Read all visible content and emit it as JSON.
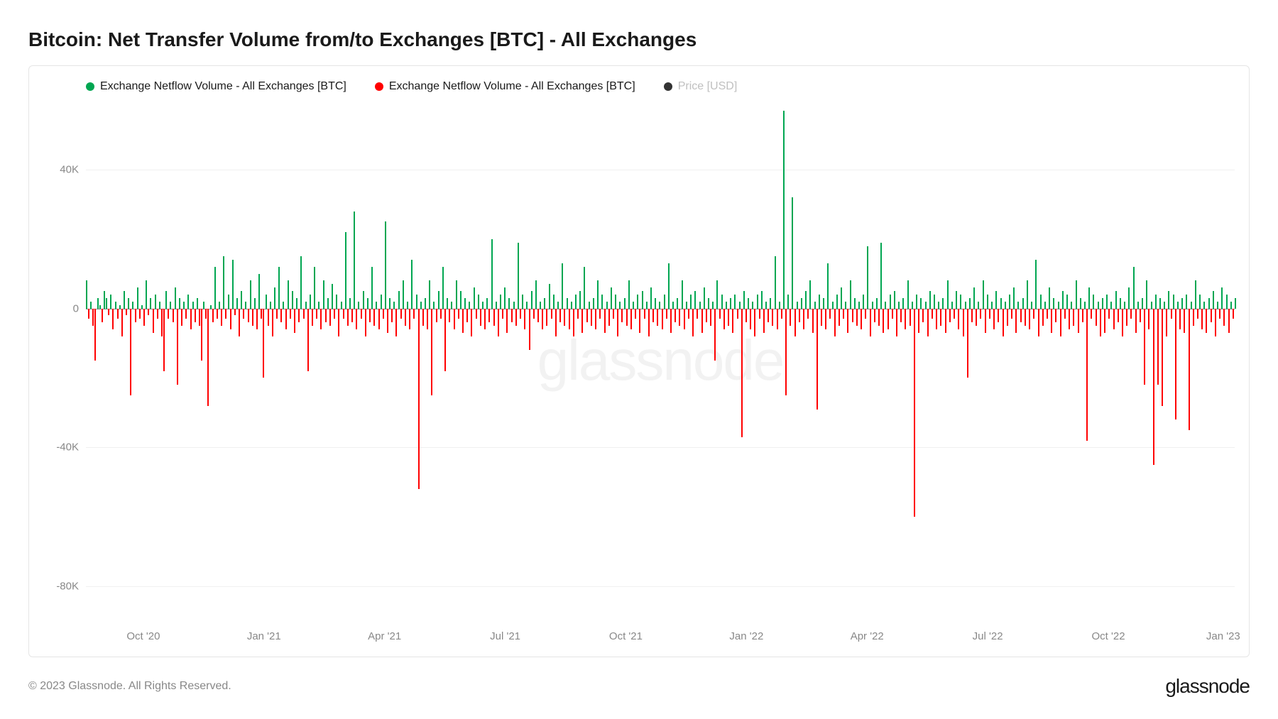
{
  "title": "Bitcoin: Net Transfer Volume from/to Exchanges [BTC] - All Exchanges",
  "legend": {
    "series1": {
      "label": "Exchange Netflow Volume - All Exchanges [BTC]",
      "color": "#00a651"
    },
    "series2": {
      "label": "Exchange Netflow Volume - All Exchanges [BTC]",
      "color": "#ff0000"
    },
    "series3": {
      "label": "Price [USD]",
      "color": "#333333",
      "inactive": true
    }
  },
  "chart": {
    "type": "bar",
    "background_color": "#ffffff",
    "grid_color": "#f0f0f0",
    "axis_color": "#888888",
    "positive_color": "#00a651",
    "negative_color": "#ff0000",
    "ylim": [
      -90000,
      60000
    ],
    "yticks": [
      {
        "v": 40000,
        "label": "40K"
      },
      {
        "v": 0,
        "label": "0"
      },
      {
        "v": -40000,
        "label": "-40K"
      },
      {
        "v": -80000,
        "label": "-80K"
      }
    ],
    "xticks": [
      {
        "pos": 0.05,
        "label": "Oct '20"
      },
      {
        "pos": 0.155,
        "label": "Jan '21"
      },
      {
        "pos": 0.26,
        "label": "Apr '21"
      },
      {
        "pos": 0.365,
        "label": "Jul '21"
      },
      {
        "pos": 0.47,
        "label": "Oct '21"
      },
      {
        "pos": 0.575,
        "label": "Jan '22"
      },
      {
        "pos": 0.68,
        "label": "Apr '22"
      },
      {
        "pos": 0.785,
        "label": "Jul '22"
      },
      {
        "pos": 0.89,
        "label": "Oct '22"
      },
      {
        "pos": 0.99,
        "label": "Jan '23"
      }
    ],
    "watermark": "glassnode",
    "data": [
      8000,
      -3000,
      2000,
      -5000,
      -15000,
      3000,
      1000,
      -4000,
      5000,
      3000,
      -2000,
      4000,
      -6000,
      2000,
      -3000,
      1000,
      -8000,
      5000,
      -2000,
      3000,
      -25000,
      2000,
      -4000,
      6000,
      -3000,
      1000,
      -5000,
      8000,
      -2000,
      3000,
      -7000,
      4000,
      -3000,
      2000,
      -8000,
      -18000,
      5000,
      -3000,
      2000,
      -4000,
      6000,
      -22000,
      3000,
      -5000,
      2000,
      -3000,
      4000,
      -6000,
      2000,
      -4000,
      3000,
      -5000,
      -15000,
      2000,
      -3000,
      -28000,
      1000,
      -4000,
      12000,
      -3000,
      2000,
      -5000,
      15000,
      -3000,
      4000,
      -6000,
      14000,
      -2000,
      3000,
      -8000,
      5000,
      -3000,
      2000,
      -4000,
      8000,
      -5000,
      3000,
      -6000,
      10000,
      -3000,
      -20000,
      4000,
      -5000,
      2000,
      -8000,
      6000,
      -3000,
      12000,
      -4000,
      2000,
      -6000,
      8000,
      -3000,
      5000,
      -7000,
      3000,
      -4000,
      15000,
      -3000,
      2000,
      -18000,
      4000,
      -5000,
      12000,
      -3000,
      2000,
      -6000,
      8000,
      -4000,
      3000,
      -5000,
      7000,
      -3000,
      4000,
      -8000,
      2000,
      -3000,
      22000,
      -5000,
      3000,
      -4000,
      28000,
      -6000,
      2000,
      -3000,
      5000,
      -8000,
      3000,
      -4000,
      12000,
      -5000,
      2000,
      -6000,
      4000,
      -3000,
      25000,
      -7000,
      3000,
      -4000,
      2000,
      -8000,
      5000,
      -3000,
      8000,
      -5000,
      2000,
      -6000,
      14000,
      -3000,
      4000,
      -52000,
      2000,
      -5000,
      3000,
      -6000,
      8000,
      -25000,
      2000,
      -4000,
      5000,
      -3000,
      12000,
      -18000,
      3000,
      -4000,
      2000,
      -6000,
      8000,
      -3000,
      5000,
      -7000,
      3000,
      -4000,
      2000,
      -8000,
      6000,
      -3000,
      4000,
      -5000,
      2000,
      -6000,
      3000,
      -4000,
      20000,
      -5000,
      2000,
      -8000,
      4000,
      -3000,
      6000,
      -7000,
      3000,
      -4000,
      2000,
      -5000,
      19000,
      -3000,
      4000,
      -6000,
      2000,
      -12000,
      5000,
      -3000,
      8000,
      -4000,
      2000,
      -6000,
      3000,
      -5000,
      7000,
      -3000,
      4000,
      -8000,
      2000,
      -4000,
      13000,
      -5000,
      3000,
      -6000,
      2000,
      -8000,
      4000,
      -3000,
      5000,
      -7000,
      12000,
      -4000,
      2000,
      -5000,
      3000,
      -6000,
      8000,
      -3000,
      4000,
      -7000,
      2000,
      -5000,
      6000,
      -3000,
      4000,
      -8000,
      2000,
      -4000,
      3000,
      -5000,
      8000,
      -6000,
      2000,
      -3000,
      4000,
      -7000,
      5000,
      -3000,
      2000,
      -8000,
      6000,
      -4000,
      3000,
      -5000,
      2000,
      -6000,
      4000,
      -3000,
      13000,
      -7000,
      2000,
      -4000,
      3000,
      -5000,
      8000,
      -6000,
      2000,
      -3000,
      4000,
      -8000,
      5000,
      -3000,
      2000,
      -7000,
      6000,
      -4000,
      3000,
      -5000,
      2000,
      -15000,
      8000,
      -3000,
      4000,
      -6000,
      2000,
      -5000,
      3000,
      -7000,
      4000,
      -3000,
      2000,
      -37000,
      5000,
      -4000,
      3000,
      -6000,
      2000,
      -8000,
      4000,
      -3000,
      5000,
      -7000,
      2000,
      -4000,
      3000,
      -5000,
      15000,
      -6000,
      2000,
      -3000,
      57000,
      -25000,
      4000,
      -5000,
      32000,
      -8000,
      2000,
      -4000,
      3000,
      -6000,
      5000,
      -3000,
      8000,
      -7000,
      2000,
      -29000,
      4000,
      -5000,
      3000,
      -6000,
      13000,
      -3000,
      2000,
      -8000,
      4000,
      -5000,
      6000,
      -3000,
      2000,
      -7000,
      8000,
      -4000,
      3000,
      -5000,
      2000,
      -6000,
      4000,
      -3000,
      18000,
      -8000,
      2000,
      -4000,
      3000,
      -5000,
      19000,
      -7000,
      2000,
      -6000,
      4000,
      -3000,
      5000,
      -8000,
      2000,
      -4000,
      3000,
      -6000,
      8000,
      -5000,
      2000,
      -60000,
      4000,
      -7000,
      3000,
      -4000,
      2000,
      -8000,
      5000,
      -3000,
      4000,
      -6000,
      2000,
      -5000,
      3000,
      -7000,
      8000,
      -4000,
      2000,
      -3000,
      5000,
      -6000,
      4000,
      -8000,
      2000,
      -20000,
      3000,
      -4000,
      6000,
      -5000,
      2000,
      -3000,
      8000,
      -7000,
      4000,
      -3000,
      2000,
      -6000,
      5000,
      -4000,
      3000,
      -8000,
      2000,
      -5000,
      4000,
      -3000,
      6000,
      -7000,
      2000,
      -4000,
      3000,
      -5000,
      8000,
      -6000,
      2000,
      -3000,
      14000,
      -8000,
      4000,
      -5000,
      2000,
      -3000,
      6000,
      -7000,
      3000,
      -4000,
      2000,
      -8000,
      5000,
      -3000,
      4000,
      -6000,
      2000,
      -5000,
      8000,
      -7000,
      3000,
      -4000,
      2000,
      -38000,
      6000,
      -3000,
      4000,
      -5000,
      2000,
      -8000,
      3000,
      -7000,
      4000,
      -3000,
      2000,
      -6000,
      5000,
      -4000,
      3000,
      -8000,
      2000,
      -5000,
      6000,
      -3000,
      12000,
      -7000,
      2000,
      -4000,
      3000,
      -22000,
      8000,
      -6000,
      2000,
      -45000,
      4000,
      -22000,
      3000,
      -28000,
      2000,
      -8000,
      5000,
      -3000,
      4000,
      -32000,
      2000,
      -6000,
      3000,
      -7000,
      4000,
      -35000,
      2000,
      -5000,
      8000,
      -3000,
      4000,
      -6000,
      2000,
      -7000,
      3000,
      -4000,
      5000,
      -8000,
      2000,
      -3000,
      6000,
      -5000,
      4000,
      -7000,
      2000,
      -3000,
      3000
    ]
  },
  "footer": {
    "copyright": "© 2023 Glassnode. All Rights Reserved.",
    "brand": "glassnode"
  }
}
